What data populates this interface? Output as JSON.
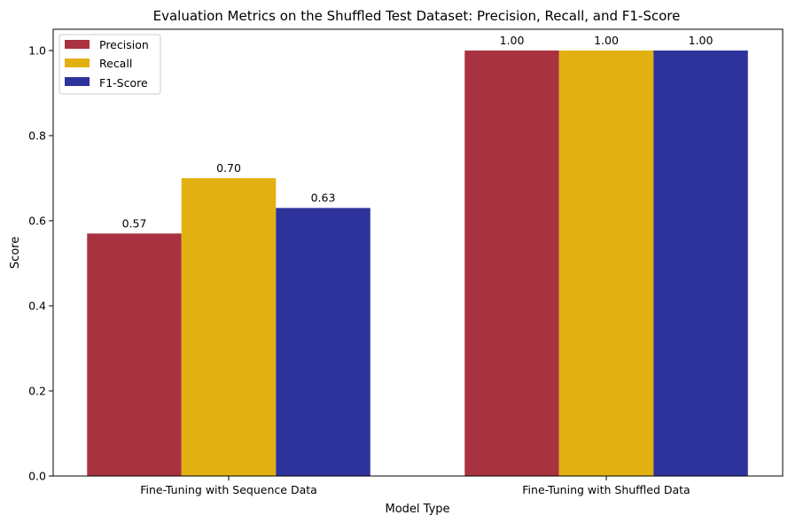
{
  "chart_data": {
    "type": "bar",
    "title": "Evaluation Metrics on the Shuffled Test Dataset: Precision, Recall, and F1-Score",
    "xlabel": "Model Type",
    "ylabel": "Score",
    "ylim": [
      0,
      1.05
    ],
    "yticks": [
      "0.0",
      "0.2",
      "0.4",
      "0.6",
      "0.8",
      "1.0"
    ],
    "categories": [
      "Fine-Tuning with Sequence Data",
      "Fine-Tuning with Shuffled Data"
    ],
    "series": [
      {
        "name": "Precision",
        "values": [
          0.57,
          1.0
        ],
        "labels": [
          "0.57",
          "1.00"
        ],
        "color": "#a93240"
      },
      {
        "name": "Recall",
        "values": [
          0.7,
          1.0
        ],
        "labels": [
          "0.70",
          "1.00"
        ],
        "color": "#e2b111"
      },
      {
        "name": "F1-Score",
        "values": [
          0.63,
          1.0
        ],
        "labels": [
          "0.63",
          "1.00"
        ],
        "color": "#2e339b"
      }
    ],
    "legend": "top-left",
    "grid": false
  }
}
